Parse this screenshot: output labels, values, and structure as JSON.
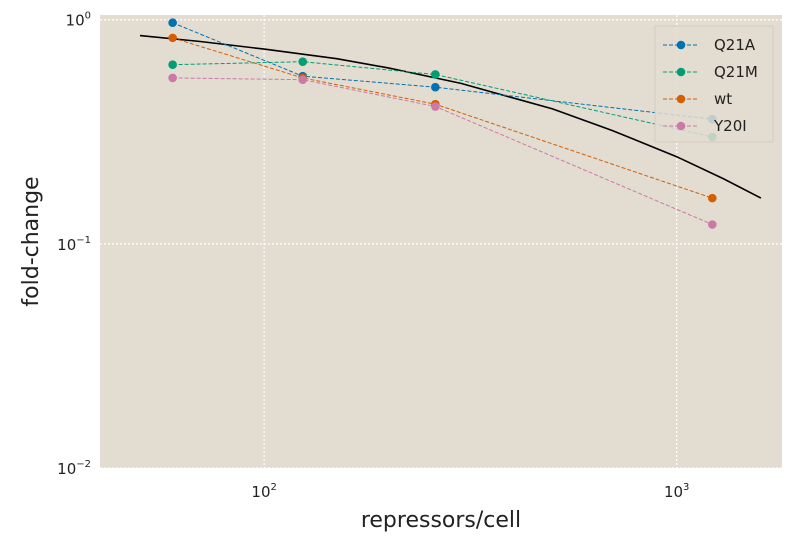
{
  "chart_data": {
    "type": "line",
    "xlabel": "repressors/cell",
    "ylabel": "fold-change",
    "x_scale": "log",
    "y_scale": "log",
    "xlim": [
      40,
      1800
    ],
    "ylim": [
      0.01,
      1.05
    ],
    "grid": true,
    "background": "#e3dcd0",
    "legend_position": "top-right",
    "x_ticks": [
      {
        "value": 100,
        "base": "10",
        "exp": "2"
      },
      {
        "value": 1000,
        "base": "10",
        "exp": "3"
      }
    ],
    "y_ticks": [
      {
        "value": 0.01,
        "base": "10",
        "exp": "−2"
      },
      {
        "value": 0.1,
        "base": "10",
        "exp": "−1"
      },
      {
        "value": 1,
        "base": "10",
        "exp": "0"
      }
    ],
    "series": [
      {
        "name": "Q21A",
        "color": "#0072b2",
        "x": [
          60,
          124,
          260,
          1220
        ],
        "y": [
          0.97,
          0.56,
          0.5,
          0.36
        ]
      },
      {
        "name": "Q21M",
        "color": "#009e73",
        "x": [
          60,
          124,
          260,
          1220
        ],
        "y": [
          0.63,
          0.65,
          0.57,
          0.3
        ]
      },
      {
        "name": "wt",
        "color": "#d55e00",
        "x": [
          60,
          124,
          260,
          1220
        ],
        "y": [
          0.83,
          0.55,
          0.42,
          0.16
        ]
      },
      {
        "name": "Y20I",
        "color": "#cc79a7",
        "x": [
          60,
          124,
          260,
          1220
        ],
        "y": [
          0.55,
          0.54,
          0.41,
          0.122
        ]
      }
    ],
    "fit_curve": {
      "color": "#000000",
      "x": [
        50,
        70,
        100,
        150,
        200,
        300,
        500,
        700,
        1000,
        1300,
        1600
      ],
      "y": [
        0.85,
        0.8,
        0.74,
        0.67,
        0.61,
        0.52,
        0.4,
        0.32,
        0.245,
        0.195,
        0.16
      ]
    }
  }
}
